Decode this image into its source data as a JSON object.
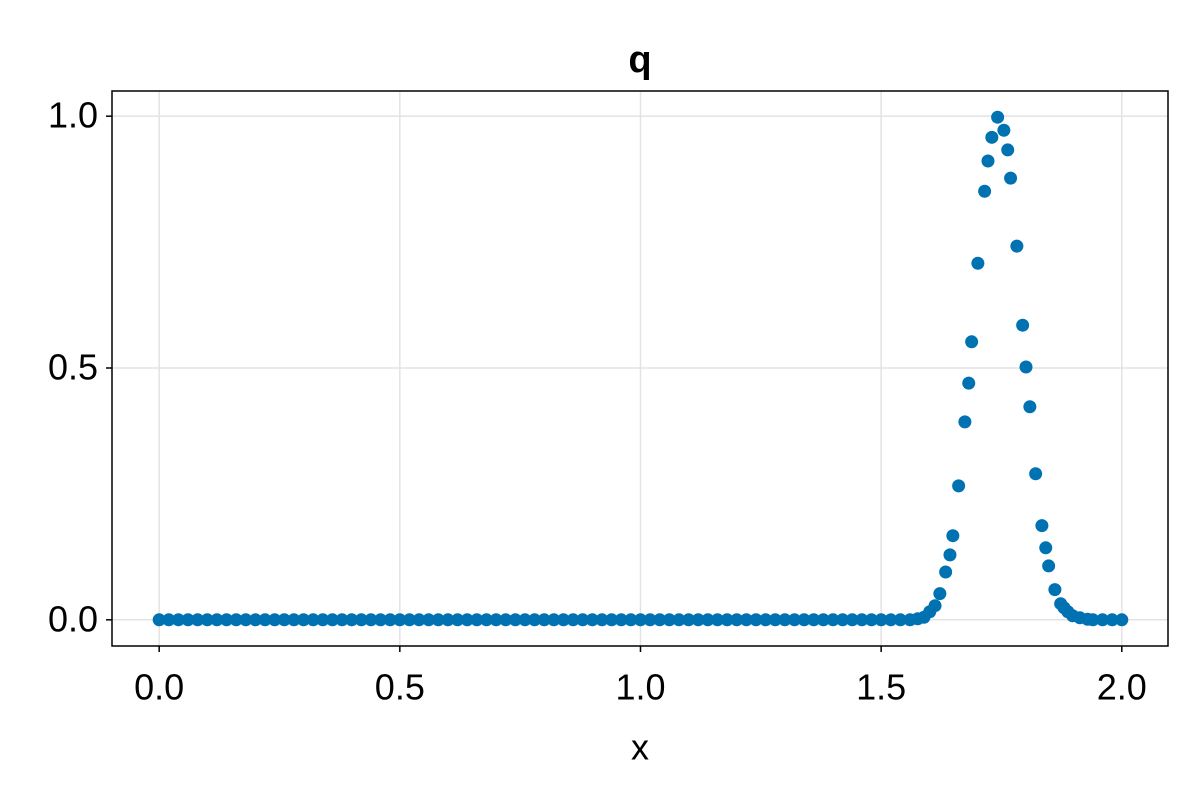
{
  "chart_data": {
    "type": "scatter",
    "title": "q",
    "x_label": "x",
    "color": "#0072b2",
    "grid": true,
    "xlim": [
      -0.098,
      2.096
    ],
    "ylim": [
      -0.052,
      1.05
    ],
    "xticks": [
      {
        "value": 0,
        "label": "0.0"
      },
      {
        "value": 0.5,
        "label": "0.5"
      },
      {
        "value": 1,
        "label": "1.0"
      },
      {
        "value": 1.5,
        "label": "1.5"
      },
      {
        "value": 2,
        "label": "2.0"
      }
    ],
    "yticks": [
      {
        "value": 0,
        "label": "0.0"
      },
      {
        "value": 0.5,
        "label": "0.5"
      },
      {
        "value": 1,
        "label": "1.0"
      }
    ],
    "x": [
      0,
      0.02,
      0.04,
      0.06,
      0.08,
      0.1,
      0.12,
      0.14,
      0.16,
      0.18,
      0.2,
      0.22,
      0.24,
      0.26,
      0.28,
      0.3,
      0.32,
      0.34,
      0.36,
      0.38,
      0.4,
      0.42,
      0.44,
      0.46,
      0.48,
      0.5,
      0.52,
      0.54,
      0.56,
      0.58,
      0.6,
      0.62,
      0.64,
      0.66,
      0.68,
      0.7,
      0.72,
      0.74,
      0.76,
      0.78,
      0.8,
      0.82,
      0.84,
      0.86,
      0.88,
      0.9,
      0.92,
      0.94,
      0.96,
      0.98,
      1,
      1.02,
      1.04,
      1.06,
      1.08,
      1.1,
      1.12,
      1.14,
      1.16,
      1.18,
      1.2,
      1.22,
      1.24,
      1.26,
      1.28,
      1.3,
      1.32,
      1.34,
      1.36,
      1.38,
      1.4,
      1.42,
      1.44,
      1.46,
      1.48,
      1.5,
      1.52,
      1.54,
      1.56,
      1.576,
      1.589,
      1.601,
      1.612,
      1.622,
      1.634,
      1.643,
      1.649,
      1.661,
      1.674,
      1.682,
      1.688,
      1.701,
      1.715,
      1.722,
      1.73,
      1.742,
      1.755,
      1.763,
      1.769,
      1.782,
      1.794,
      1.801,
      1.809,
      1.821,
      1.834,
      1.842,
      1.848,
      1.861,
      1.873,
      1.88,
      1.888,
      1.898,
      1.913,
      1.929,
      1.94,
      1.96,
      1.98,
      2
    ],
    "values": [
      0,
      0,
      0,
      0,
      0,
      0,
      0,
      0,
      0,
      0,
      0,
      0,
      0,
      0,
      0,
      0,
      0,
      0,
      0,
      0,
      0,
      0,
      0,
      0,
      0,
      0,
      0,
      0,
      0,
      0,
      0,
      0,
      0,
      0,
      0,
      0,
      0,
      0,
      0,
      0,
      0,
      0,
      0,
      0,
      0,
      0,
      0,
      0,
      0,
      0,
      0,
      0,
      0,
      0,
      0,
      0,
      0,
      0,
      0,
      0,
      0,
      0,
      0,
      0,
      0,
      0,
      0,
      0,
      0,
      0,
      0,
      0,
      0,
      0,
      0,
      0,
      0,
      0,
      0,
      0.002,
      0.005,
      0.016,
      0.028,
      0.052,
      0.095,
      0.129,
      0.167,
      0.266,
      0.393,
      0.47,
      0.552,
      0.708,
      0.851,
      0.911,
      0.958,
      0.998,
      0.972,
      0.933,
      0.877,
      0.742,
      0.585,
      0.502,
      0.423,
      0.29,
      0.187,
      0.143,
      0.107,
      0.06,
      0.032,
      0.024,
      0.016,
      0.008,
      0.004,
      0.001,
      0,
      0,
      0,
      0
    ]
  }
}
